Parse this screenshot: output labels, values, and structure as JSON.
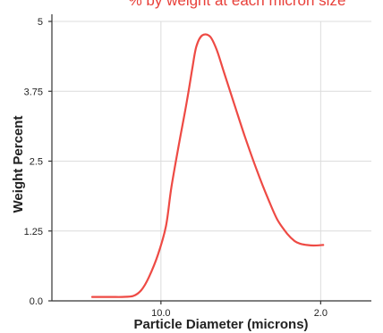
{
  "chart_data": {
    "type": "line",
    "title": "% by weight at each micron size",
    "xlabel": "Particle Diameter (microns)",
    "ylabel": "Weight Percent",
    "x_scale": "log-reversed",
    "xlim": [
      30,
      1.2
    ],
    "ylim": [
      0,
      5
    ],
    "y_ticks": [
      0,
      1.25,
      2.5,
      3.75,
      5
    ],
    "y_tick_labels": [
      "0.0",
      "1.25",
      "2.5",
      "3.75",
      "5"
    ],
    "x_ticks": [
      10,
      2
    ],
    "x_tick_labels": [
      "10.0",
      "2.0"
    ],
    "grid": true,
    "colors": {
      "line": "#ee4a44",
      "title": "#e8403a"
    },
    "series": [
      {
        "x": [
          20,
          18,
          16.3,
          14.8,
          13.2,
          12.2,
          11.3,
          10.3,
          9.5,
          9.0,
          8.3,
          7.7,
          7.3,
          7.0,
          6.6,
          6.1,
          5.7,
          5.3,
          4.8,
          4.3,
          3.8,
          3.4,
          3.1,
          2.8,
          2.6,
          2.45,
          2.3,
          2.15,
          1.95
        ],
        "y": [
          0.07,
          0.07,
          0.07,
          0.07,
          0.09,
          0.19,
          0.42,
          0.83,
          1.34,
          2.03,
          2.85,
          3.57,
          4.14,
          4.55,
          4.75,
          4.73,
          4.49,
          4.09,
          3.55,
          2.95,
          2.33,
          1.83,
          1.46,
          1.2,
          1.07,
          1.02,
          1.0,
          0.99,
          1.0
        ]
      }
    ]
  }
}
